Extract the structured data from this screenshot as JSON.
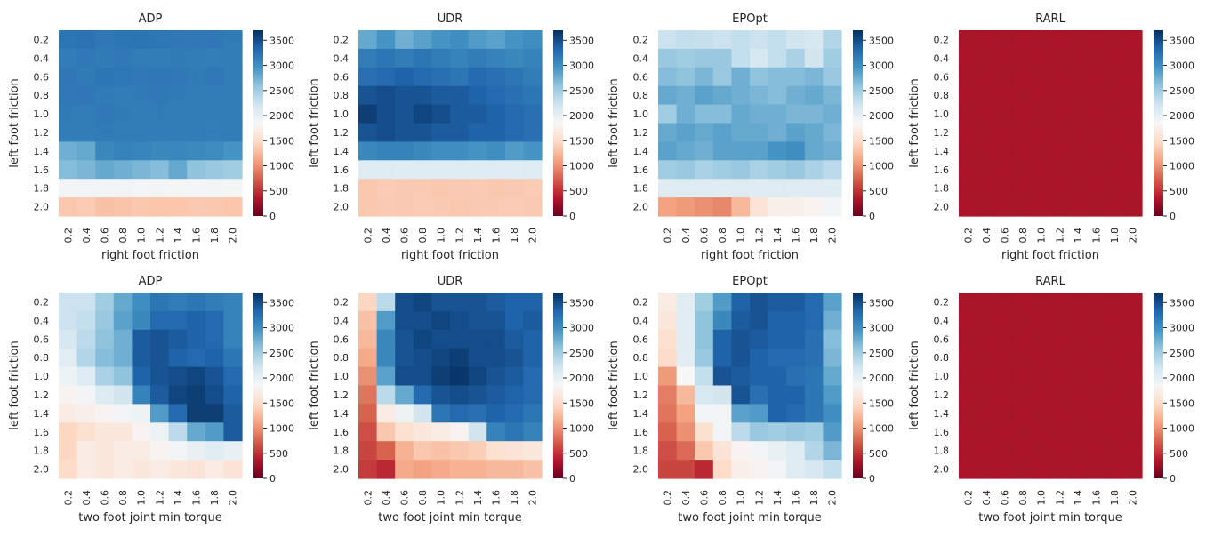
{
  "chart_data": {
    "type": "heatmap",
    "colormap": "RdBu",
    "colorbar": {
      "vmin": 0,
      "vmax": 3700,
      "ticks": [
        0,
        500,
        1000,
        1500,
        2000,
        2500,
        3000,
        3500
      ]
    },
    "yticklabels": [
      "0.2",
      "0.4",
      "0.6",
      "0.8",
      "1.0",
      "1.2",
      "1.4",
      "1.6",
      "1.8",
      "2.0"
    ],
    "xticklabels": [
      "0.2",
      "0.4",
      "0.6",
      "0.8",
      "1.0",
      "1.2",
      "1.4",
      "1.6",
      "1.8",
      "2.0"
    ],
    "panels": [
      {
        "title": "ADP",
        "xlabel": "right foot friction",
        "ylabel": "left foot friction",
        "values": [
          [
            3200,
            3220,
            3180,
            3200,
            3210,
            3190,
            3180,
            3170,
            3180,
            3160
          ],
          [
            3150,
            3170,
            3160,
            3170,
            3150,
            3140,
            3160,
            3150,
            3130,
            3150
          ],
          [
            3180,
            3160,
            3200,
            3190,
            3170,
            3180,
            3170,
            3160,
            3170,
            3150
          ],
          [
            3170,
            3180,
            3160,
            3150,
            3160,
            3170,
            3160,
            3150,
            3140,
            3150
          ],
          [
            3160,
            3150,
            3170,
            3160,
            3150,
            3160,
            3150,
            3140,
            3150,
            3140
          ],
          [
            3150,
            3140,
            3160,
            3150,
            3150,
            3140,
            3150,
            3140,
            3130,
            3140
          ],
          [
            2750,
            2800,
            3050,
            3100,
            3080,
            3050,
            3060,
            3040,
            3020,
            2950
          ],
          [
            2650,
            2700,
            2800,
            2750,
            2700,
            2650,
            2800,
            2600,
            2550,
            2500
          ],
          [
            1900,
            1920,
            1900,
            1910,
            1890,
            1900,
            1880,
            1890,
            1900,
            1880
          ],
          [
            1350,
            1380,
            1300,
            1320,
            1350,
            1330,
            1340,
            1360,
            1350,
            1330
          ]
        ]
      },
      {
        "title": "UDR",
        "xlabel": "right foot friction",
        "ylabel": "left foot friction",
        "values": [
          [
            2800,
            2950,
            2750,
            2850,
            2950,
            3000,
            2900,
            2850,
            2950,
            3000
          ],
          [
            3150,
            3200,
            3150,
            3200,
            3150,
            3100,
            3150,
            3100,
            3050,
            3100
          ],
          [
            3250,
            3300,
            3350,
            3300,
            3250,
            3200,
            3300,
            3250,
            3200,
            3150
          ],
          [
            3450,
            3500,
            3450,
            3450,
            3400,
            3400,
            3350,
            3300,
            3250,
            3200
          ],
          [
            3600,
            3500,
            3450,
            3550,
            3500,
            3400,
            3400,
            3350,
            3300,
            3250
          ],
          [
            3450,
            3500,
            3450,
            3450,
            3400,
            3400,
            3350,
            3350,
            3300,
            3250
          ],
          [
            3050,
            3100,
            3100,
            3050,
            3000,
            3000,
            2950,
            3000,
            2900,
            2950
          ],
          [
            2080,
            2090,
            2080,
            2090,
            2080,
            2090,
            2080,
            2090,
            2080,
            2090
          ],
          [
            1350,
            1380,
            1360,
            1370,
            1350,
            1360,
            1370,
            1350,
            1360,
            1380
          ],
          [
            1350,
            1370,
            1360,
            1380,
            1370,
            1350,
            1360,
            1370,
            1380,
            1360
          ]
        ]
      },
      {
        "title": "EPOpt",
        "xlabel": "right foot friction",
        "ylabel": "left foot friction",
        "values": [
          [
            2250,
            2300,
            2280,
            2250,
            2300,
            2250,
            2300,
            2200,
            2150,
            2400
          ],
          [
            2550,
            2500,
            2550,
            2550,
            2300,
            2150,
            2300,
            2450,
            2200,
            2500
          ],
          [
            2650,
            2600,
            2700,
            2550,
            2750,
            2600,
            2650,
            2650,
            2700,
            2550
          ],
          [
            2800,
            2750,
            2850,
            2800,
            2750,
            2700,
            2650,
            2750,
            2800,
            2700
          ],
          [
            2500,
            2750,
            2650,
            2650,
            2800,
            2750,
            2750,
            2700,
            2700,
            2750
          ],
          [
            2800,
            2850,
            2800,
            2850,
            2800,
            2800,
            2750,
            2850,
            2800,
            2700
          ],
          [
            2850,
            2800,
            2750,
            2850,
            2850,
            2850,
            2950,
            3000,
            2800,
            2750
          ],
          [
            2500,
            2550,
            2450,
            2500,
            2550,
            2450,
            2500,
            2550,
            2450,
            2350
          ],
          [
            2080,
            2100,
            2090,
            2080,
            2090,
            2080,
            2090,
            2080,
            2090,
            2080
          ],
          [
            1100,
            1050,
            1000,
            950,
            1250,
            1600,
            1750,
            1750,
            1800,
            1900
          ]
        ]
      },
      {
        "title": "RARL",
        "xlabel": "right foot friction",
        "ylabel": "left foot friction",
        "values": [
          [
            320,
            330,
            320,
            330,
            320,
            330,
            320,
            330,
            320,
            330
          ],
          [
            330,
            320,
            330,
            320,
            330,
            320,
            330,
            320,
            330,
            320
          ],
          [
            320,
            330,
            320,
            330,
            320,
            330,
            320,
            330,
            320,
            330
          ],
          [
            330,
            320,
            330,
            320,
            330,
            320,
            330,
            320,
            330,
            320
          ],
          [
            320,
            330,
            320,
            330,
            320,
            330,
            320,
            330,
            320,
            330
          ],
          [
            330,
            320,
            330,
            320,
            330,
            320,
            330,
            320,
            330,
            320
          ],
          [
            320,
            330,
            320,
            330,
            320,
            330,
            320,
            330,
            320,
            330
          ],
          [
            330,
            320,
            330,
            320,
            330,
            320,
            330,
            320,
            330,
            320
          ],
          [
            320,
            330,
            320,
            330,
            320,
            330,
            320,
            330,
            320,
            330
          ],
          [
            330,
            320,
            330,
            320,
            330,
            320,
            330,
            320,
            330,
            320
          ]
        ]
      },
      {
        "title": "ADP",
        "xlabel": "two foot joint min torque",
        "ylabel": "left foot friction",
        "values": [
          [
            2250,
            2250,
            2500,
            2800,
            3000,
            3200,
            3150,
            3200,
            3150,
            3100
          ],
          [
            2250,
            2300,
            2550,
            2850,
            3050,
            3300,
            3300,
            3350,
            3300,
            3100
          ],
          [
            2150,
            2350,
            2600,
            2750,
            3400,
            3450,
            3400,
            3350,
            3300,
            3100
          ],
          [
            2050,
            2400,
            2650,
            2750,
            3400,
            3450,
            3350,
            3300,
            3350,
            3200
          ],
          [
            1950,
            2100,
            2450,
            2600,
            3350,
            3450,
            3500,
            3550,
            3450,
            3300
          ],
          [
            1800,
            1900,
            2100,
            2200,
            3100,
            3400,
            3550,
            3600,
            3500,
            3350
          ],
          [
            1700,
            1750,
            1800,
            1900,
            1950,
            2900,
            3300,
            3600,
            3600,
            3400
          ],
          [
            1450,
            1550,
            1650,
            1650,
            1800,
            1950,
            2350,
            2800,
            2900,
            3400
          ],
          [
            1450,
            1700,
            1650,
            1700,
            1700,
            1800,
            1900,
            2000,
            2050,
            2000
          ],
          [
            1500,
            1700,
            1650,
            1700,
            1650,
            1700,
            1650,
            1600,
            1700,
            1600
          ]
        ]
      },
      {
        "title": "UDR",
        "xlabel": "two foot joint min torque",
        "ylabel": "left foot friction",
        "values": [
          [
            1450,
            2350,
            3500,
            3550,
            3450,
            3450,
            3450,
            3400,
            3350,
            3350
          ],
          [
            1300,
            2900,
            3500,
            3500,
            3550,
            3500,
            3450,
            3450,
            3350,
            3400
          ],
          [
            1250,
            3050,
            3450,
            3550,
            3500,
            3500,
            3500,
            3500,
            3400,
            3350
          ],
          [
            1150,
            3050,
            3450,
            3500,
            3550,
            3600,
            3500,
            3500,
            3450,
            3350
          ],
          [
            1000,
            2850,
            3500,
            3500,
            3600,
            3650,
            3550,
            3450,
            3400,
            3300
          ],
          [
            850,
            2350,
            2800,
            3300,
            3450,
            3500,
            3450,
            3400,
            3350,
            3300
          ],
          [
            750,
            1700,
            1950,
            2200,
            3200,
            3300,
            3250,
            3350,
            3300,
            3200
          ],
          [
            650,
            1350,
            1550,
            1650,
            1700,
            1800,
            2200,
            3100,
            3200,
            3100
          ],
          [
            600,
            750,
            1200,
            1350,
            1300,
            1350,
            1400,
            1550,
            1600,
            1650
          ],
          [
            550,
            450,
            1150,
            1100,
            1150,
            1200,
            1200,
            1250,
            1250,
            1300
          ]
        ]
      },
      {
        "title": "EPOpt",
        "xlabel": "two foot joint min torque",
        "ylabel": "left foot friction",
        "values": [
          [
            1700,
            2050,
            2500,
            2900,
            3350,
            3450,
            3400,
            3400,
            3300,
            2850
          ],
          [
            1650,
            2050,
            2600,
            3050,
            3400,
            3450,
            3350,
            3350,
            3300,
            2750
          ],
          [
            1550,
            2050,
            2600,
            3350,
            3450,
            3400,
            3350,
            3350,
            3250,
            2650
          ],
          [
            1500,
            2050,
            2550,
            3350,
            3450,
            3350,
            3300,
            3300,
            3250,
            2700
          ],
          [
            1050,
            1850,
            2300,
            3450,
            3400,
            3350,
            3350,
            3250,
            3200,
            2800
          ],
          [
            900,
            1250,
            2150,
            2200,
            3450,
            3250,
            3350,
            3350,
            3200,
            2900
          ],
          [
            850,
            1100,
            1900,
            1900,
            2850,
            2900,
            3350,
            3300,
            3200,
            3000
          ],
          [
            750,
            1000,
            1550,
            1900,
            2350,
            2550,
            2500,
            2550,
            2500,
            2900
          ],
          [
            650,
            800,
            1350,
            1600,
            1800,
            1900,
            2000,
            2100,
            2400,
            2700
          ],
          [
            600,
            600,
            450,
            1500,
            1750,
            1800,
            1900,
            2100,
            2150,
            2300
          ]
        ]
      },
      {
        "title": "RARL",
        "xlabel": "two foot joint min torque",
        "ylabel": "left foot friction",
        "values": [
          [
            320,
            330,
            320,
            330,
            320,
            330,
            320,
            330,
            320,
            330
          ],
          [
            330,
            320,
            330,
            320,
            330,
            320,
            330,
            320,
            330,
            320
          ],
          [
            320,
            330,
            320,
            330,
            320,
            330,
            320,
            330,
            320,
            330
          ],
          [
            330,
            320,
            330,
            320,
            330,
            320,
            330,
            320,
            330,
            320
          ],
          [
            320,
            330,
            320,
            330,
            320,
            330,
            320,
            330,
            320,
            330
          ],
          [
            330,
            320,
            330,
            320,
            330,
            320,
            330,
            320,
            330,
            320
          ],
          [
            320,
            330,
            320,
            330,
            320,
            330,
            320,
            330,
            320,
            330
          ],
          [
            330,
            320,
            330,
            320,
            330,
            320,
            330,
            320,
            330,
            320
          ],
          [
            320,
            330,
            320,
            330,
            320,
            330,
            320,
            330,
            320,
            330
          ],
          [
            330,
            320,
            330,
            320,
            330,
            320,
            330,
            320,
            330,
            320
          ]
        ]
      }
    ]
  }
}
